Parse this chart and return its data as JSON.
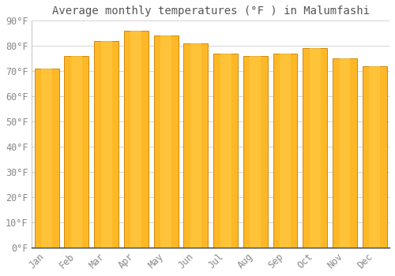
{
  "title": "Average monthly temperatures (°F ) in Malumfashi",
  "months": [
    "Jan",
    "Feb",
    "Mar",
    "Apr",
    "May",
    "Jun",
    "Jul",
    "Aug",
    "Sep",
    "Oct",
    "Nov",
    "Dec"
  ],
  "values": [
    71,
    76,
    82,
    86,
    84,
    81,
    77,
    76,
    77,
    79,
    75,
    72
  ],
  "bar_color_main": "#FDB827",
  "bar_color_left": "#F5A800",
  "bar_color_right": "#FFCC44",
  "bar_edge_color": "#D4870A",
  "background_color": "#FFFFFF",
  "plot_bg_color": "#FFFFFF",
  "grid_color": "#CCCCCC",
  "text_color": "#888888",
  "title_color": "#555555",
  "ylim": [
    0,
    90
  ],
  "yticks": [
    0,
    10,
    20,
    30,
    40,
    50,
    60,
    70,
    80,
    90
  ],
  "ytick_labels": [
    "0°F",
    "10°F",
    "20°F",
    "30°F",
    "40°F",
    "50°F",
    "60°F",
    "70°F",
    "80°F",
    "90°F"
  ],
  "title_fontsize": 10,
  "tick_fontsize": 8.5,
  "font_family": "monospace",
  "bar_width": 0.82
}
